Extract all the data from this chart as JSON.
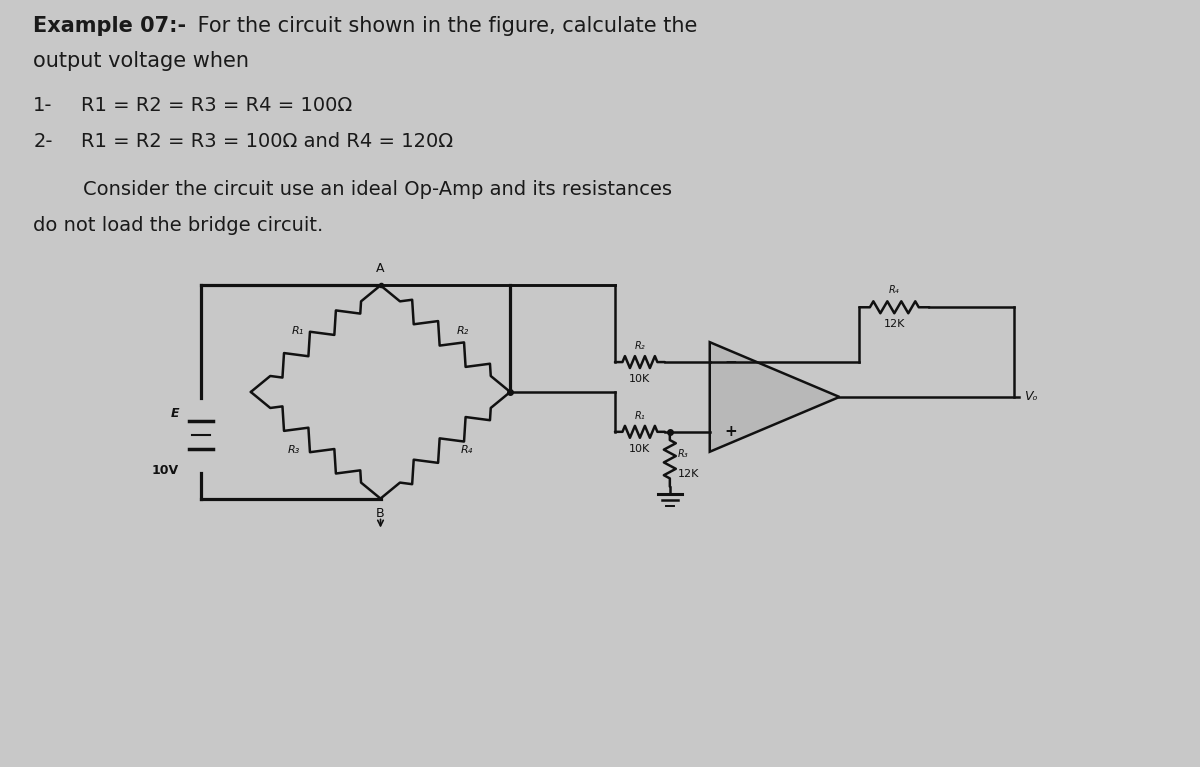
{
  "bg_color": "#c8c8c8",
  "text_color": "#1a1a1a",
  "circuit_color": "#111111",
  "font_size_title": 15,
  "font_size_body": 14,
  "font_size_small": 9,
  "font_size_med": 10,
  "title_bold": "Example 07:-",
  "title_rest": " For the circuit shown in the figure, calculate the",
  "line0": "output voltage when",
  "line1_num": "1-",
  "line1_text": "R1 = R2 = R3 = R4 = 100Ω",
  "line2_num": "2-",
  "line2_text": "R1 = R2 = R3 = 100Ω and R4 = 120Ω",
  "consider1": "        Consider the circuit use an ideal Op-Amp and its resistances",
  "consider2": "do not load the bridge circuit.",
  "label_Vo": "Vₒ",
  "label_A": "A",
  "label_B": "B",
  "label_E": "E",
  "label_10V": "10V",
  "label_R1": "R₁",
  "label_R2": "R₂",
  "label_R3": "R₃",
  "label_R4": "R₄",
  "label_10K": "10K",
  "label_12K": "12K"
}
